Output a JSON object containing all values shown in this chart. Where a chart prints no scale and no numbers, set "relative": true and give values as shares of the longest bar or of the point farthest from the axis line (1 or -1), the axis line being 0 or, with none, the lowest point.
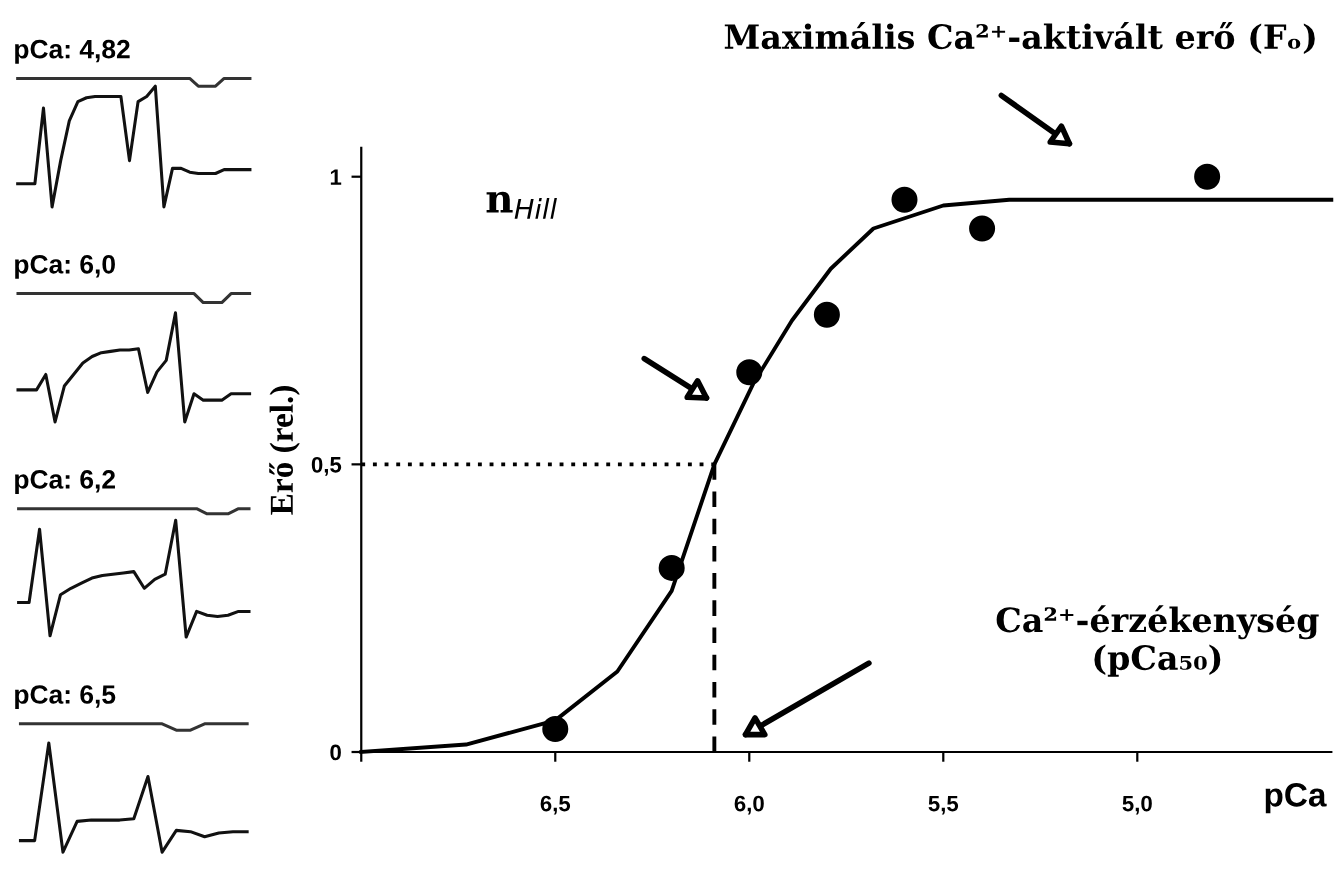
{
  "chart_data": [
    {
      "type": "line",
      "relative": true,
      "title": "pCa: 4,82",
      "categories": [
        null,
        null,
        null,
        null,
        null,
        null,
        null,
        null,
        null,
        null,
        null,
        null,
        null,
        null,
        null,
        null,
        null,
        null,
        null,
        null,
        null,
        null,
        null,
        null,
        null,
        null,
        null,
        null
      ],
      "series": [
        {
          "color": "#333333",
          "values": [
            1,
            1,
            1,
            1,
            1,
            1,
            1,
            1,
            1,
            1,
            1,
            1,
            1,
            1,
            1,
            1,
            1,
            1,
            1,
            1,
            1,
            0.94,
            0.94,
            0.94,
            1,
            1,
            1,
            1
          ]
        },
        {
          "color": "#111111",
          "values": [
            0.18,
            0.18,
            0.18,
            0.77,
            0,
            0.36,
            0.67,
            0.82,
            0.85,
            0.86,
            0.86,
            0.86,
            0.86,
            0.36,
            0.82,
            0.86,
            0.94,
            0,
            0.3,
            0.3,
            0.27,
            0.26,
            0.26,
            0.26,
            0.29,
            0.29,
            0.29,
            0.29
          ]
        }
      ]
    },
    {
      "type": "line",
      "relative": true,
      "title": "pCa: 6,0",
      "categories": [
        null,
        null,
        null,
        null,
        null,
        null,
        null,
        null,
        null,
        null,
        null,
        null,
        null,
        null,
        null,
        null,
        null,
        null,
        null,
        null,
        null,
        null,
        null,
        null,
        null,
        null
      ],
      "series": [
        {
          "color": "#333333",
          "values": [
            1,
            1,
            1,
            1,
            1,
            1,
            1,
            1,
            1,
            1,
            1,
            1,
            1,
            1,
            1,
            1,
            1,
            1,
            1,
            1,
            0.93,
            0.93,
            0.93,
            1,
            1,
            1
          ]
        },
        {
          "color": "#111111",
          "values": [
            0.25,
            0.25,
            0.25,
            0.37,
            0,
            0.28,
            0.37,
            0.46,
            0.51,
            0.54,
            0.55,
            0.56,
            0.56,
            0.57,
            0.23,
            0.39,
            0.48,
            0.85,
            0,
            0.22,
            0.17,
            0.17,
            0.17,
            0.22,
            0.22,
            0.22
          ]
        }
      ]
    },
    {
      "type": "line",
      "relative": true,
      "title": "pCa: 6,2",
      "categories": [
        null,
        null,
        null,
        null,
        null,
        null,
        null,
        null,
        null,
        null,
        null,
        null,
        null,
        null,
        null,
        null,
        null,
        null,
        null,
        null,
        null,
        null,
        null
      ],
      "series": [
        {
          "color": "#333333",
          "values": [
            1,
            1,
            1,
            1,
            1,
            1,
            1,
            1,
            1,
            1,
            1,
            1,
            1,
            1,
            1,
            1,
            1,
            1,
            0.96,
            0.96,
            0.96,
            1,
            1
          ]
        },
        {
          "color": "#111111",
          "values": [
            0.27,
            0.27,
            0.84,
            0.01,
            0.33,
            0.38,
            0.42,
            0.46,
            0.48,
            0.49,
            0.5,
            0.51,
            0.38,
            0.45,
            0.49,
            0.91,
            0,
            0.2,
            0.17,
            0.16,
            0.17,
            0.2,
            0.2
          ]
        }
      ]
    },
    {
      "type": "line",
      "relative": true,
      "title": "pCa: 6,5",
      "categories": [
        null,
        null,
        null,
        null,
        null,
        null,
        null,
        null,
        null,
        null,
        null,
        null,
        null,
        null,
        null,
        null,
        null
      ],
      "series": [
        {
          "color": "#333333",
          "values": [
            1,
            1,
            1,
            1,
            1,
            1,
            1,
            1,
            1,
            1,
            1,
            0.95,
            0.95,
            1,
            1,
            1,
            1
          ]
        },
        {
          "color": "#111111",
          "values": [
            0.09,
            0.09,
            0.85,
            0,
            0.24,
            0.25,
            0.25,
            0.25,
            0.26,
            0.59,
            0,
            0.17,
            0.16,
            0.12,
            0.15,
            0.16,
            0.16
          ]
        }
      ]
    },
    {
      "type": "scatter",
      "xlabel": "pCa",
      "ylabel": "Erő (rel.)",
      "xlim": [
        7.0,
        4.5
      ],
      "ylim": [
        0,
        1.05
      ],
      "xticks": [
        {
          "value": 7.0,
          "label": null
        },
        {
          "value": 6.5,
          "label": "6,5"
        },
        {
          "value": 6.0,
          "label": "6,0"
        },
        {
          "value": 5.5,
          "label": "5,5"
        },
        {
          "value": 5.0,
          "label": "5,0"
        }
      ],
      "yticks": [
        0,
        {
          "value": 0.5,
          "label": "0,5"
        },
        1
      ],
      "grid": false,
      "series": [
        {
          "type": "line",
          "color": "#000000",
          "x": [
            7.0,
            6.73,
            6.5,
            6.34,
            6.2,
            6.09,
            5.99,
            5.89,
            5.79,
            5.68,
            5.5,
            5.33,
            4.5
          ],
          "values": [
            0,
            0.013,
            0.055,
            0.14,
            0.28,
            0.5,
            0.64,
            0.75,
            0.84,
            0.91,
            0.95,
            0.96,
            0.96
          ]
        },
        {
          "type": "line",
          "line_style": "dotted",
          "color": "#000000",
          "x": [
            7.0,
            6.09
          ],
          "values": [
            0.5,
            0.5
          ]
        },
        {
          "type": "line",
          "line_style": "dashed",
          "color": "#000000",
          "x": [
            6.09,
            6.09
          ],
          "values": [
            0,
            0.5
          ]
        },
        {
          "type": "scatter",
          "marker": "circle",
          "color": "#000000",
          "x": [
            6.5,
            6.2,
            6.0,
            5.8,
            5.6,
            5.4,
            4.82
          ],
          "values": [
            0.04,
            0.32,
            0.66,
            0.76,
            0.96,
            0.91,
            1.0
          ]
        }
      ],
      "annotations": [
        "Maximális Ca²⁺-aktivált erő (Fₒ)",
        "n$_{Hill}$",
        "Ca²⁺-érzékenység\n(pCa₅₀)"
      ]
    }
  ]
}
